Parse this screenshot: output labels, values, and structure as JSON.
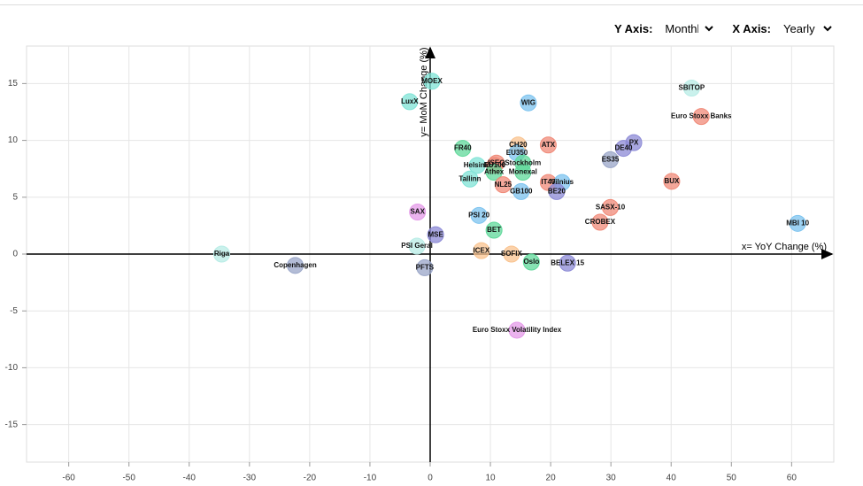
{
  "controls": {
    "y_axis": {
      "label": "Y Axis:",
      "value": "Monthly"
    },
    "x_axis": {
      "label": "X Axis:",
      "value": "Yearly"
    }
  },
  "chart_data": {
    "type": "scatter",
    "x_label": "x= YoY Change (%)",
    "y_label": "y= MoM Change (%)",
    "xlim": [
      -67,
      67
    ],
    "ylim": [
      -18.3,
      18.3
    ],
    "xticks": [
      -60,
      -50,
      -40,
      -30,
      -20,
      -10,
      0,
      10,
      20,
      30,
      40,
      50,
      60
    ],
    "yticks": [
      -15,
      -10,
      -5,
      0,
      5,
      10,
      15
    ],
    "grid": true,
    "labels": [
      "Riga",
      "Copenhagen",
      "LuxX",
      "MOEX",
      "WIG",
      "SBITOP",
      "Euro Stoxx Banks",
      "FR40",
      "CH20",
      "ATX",
      "PX",
      "DE40",
      "ES35",
      "EU350",
      "ISEQ",
      "EU100",
      "Stockholm",
      "Helsinki",
      "Athex",
      "Monexal",
      "Tallinn",
      "NL25",
      "IT40",
      "Vilnius",
      "BE20",
      "GB100",
      "BUX",
      "SASX-10",
      "CROBEX",
      "MBI 10",
      "SAX",
      "PSI 20",
      "BET",
      "MSE",
      "PSI Geral",
      "ICEX",
      "SOFIX",
      "Oslo",
      "BELEX 15",
      "PFTS",
      "Euro Stoxx Volatility Index"
    ],
    "x": [
      -34.6,
      -22.4,
      -3.4,
      0.3,
      16.3,
      43.4,
      45.0,
      5.4,
      14.6,
      19.6,
      33.8,
      32.1,
      29.9,
      14.4,
      11.0,
      10.7,
      15.4,
      7.8,
      10.6,
      15.4,
      6.6,
      12.1,
      19.6,
      21.9,
      21.0,
      15.1,
      40.1,
      29.9,
      28.2,
      61.0,
      -2.1,
      8.1,
      10.6,
      0.9,
      -2.2,
      8.5,
      13.5,
      16.8,
      22.8,
      -0.9,
      14.4
    ],
    "y": [
      0.0,
      -1.0,
      13.4,
      15.2,
      13.3,
      14.6,
      12.1,
      9.3,
      9.6,
      9.6,
      9.8,
      9.3,
      8.3,
      8.9,
      8.0,
      7.8,
      8.0,
      7.8,
      7.2,
      7.2,
      6.6,
      6.1,
      6.3,
      6.3,
      5.5,
      5.5,
      6.4,
      4.1,
      2.8,
      2.7,
      3.7,
      3.4,
      2.1,
      1.7,
      0.7,
      0.3,
      0.0,
      -0.7,
      -0.8,
      -1.2,
      -6.7
    ],
    "colors": [
      "#b8ece6",
      "#9aa6c8",
      "#7fe3d6",
      "#7fe3d6",
      "#7cc3ef",
      "#b8ece6",
      "#f08a78",
      "#5fd89a",
      "#f9c38f",
      "#f08a78",
      "#8c8ad6",
      "#8c8ad6",
      "#9aa6c8",
      "#7cc3ef",
      "#f08a78",
      "#f08a78",
      "#5fd89a",
      "#7fe3d6",
      "#5fd89a",
      "#5fd89a",
      "#7fe3d6",
      "#f08a78",
      "#f08a78",
      "#7cc3ef",
      "#8c8ad6",
      "#7cc3ef",
      "#f08a78",
      "#f08a78",
      "#f08a78",
      "#7cc3ef",
      "#e49ae8",
      "#7cc3ef",
      "#5fd89a",
      "#8c8ad6",
      "#b8ece6",
      "#f9c38f",
      "#f9c38f",
      "#5fd89a",
      "#8c8ad6",
      "#9aa6c8",
      "#e49ae8"
    ]
  }
}
